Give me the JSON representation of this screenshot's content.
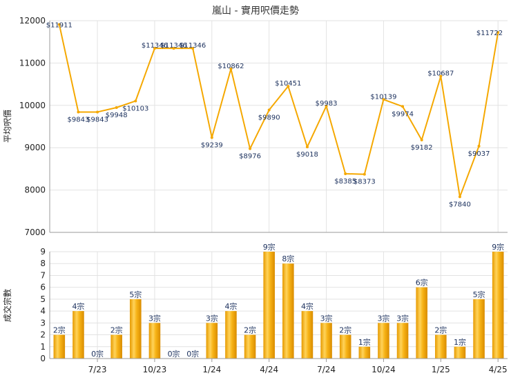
{
  "chart_data": [
    {
      "type": "line",
      "title": "嵐山 - 實用呎價走勢",
      "ylabel": "平均呎價",
      "ylim": [
        7000,
        12000
      ],
      "yticks": [
        7000,
        8000,
        9000,
        10000,
        11000,
        12000
      ],
      "line_color": "#f5a800",
      "series": [
        {
          "values": [
            11911,
            9843,
            9843,
            9948,
            10103,
            11346,
            11346,
            11346,
            9239,
            10862,
            8976,
            9890,
            10451,
            9018,
            9983,
            8385,
            8373,
            10139,
            9974,
            9182,
            10687,
            7840,
            9037,
            11722
          ],
          "labels": [
            "$11911",
            "$9843",
            "$9843",
            "$9948",
            "$10103",
            "$11346",
            "$11346",
            "$11346",
            "$9239",
            "$10862",
            "$8976",
            "$9890",
            "$10451",
            "$9018",
            "$9983",
            "$8385",
            "$8373",
            "$10139",
            "$9974",
            "$9182",
            "$10687",
            "$7840",
            "$9037",
            "$11722"
          ]
        }
      ]
    },
    {
      "type": "bar",
      "ylabel": "成交宗數",
      "ylim": [
        0,
        9
      ],
      "yticks": [
        0,
        1,
        2,
        3,
        4,
        5,
        6,
        7,
        8,
        9
      ],
      "bar_color": "#f5a800",
      "values": [
        2,
        4,
        0,
        2,
        5,
        3,
        0,
        0,
        3,
        4,
        2,
        9,
        8,
        4,
        3,
        2,
        1,
        3,
        3,
        6,
        2,
        1,
        5,
        9
      ],
      "labels": [
        "2宗",
        "4宗",
        "0宗",
        "2宗",
        "5宗",
        "3宗",
        "0宗",
        "0宗",
        "3宗",
        "4宗",
        "2宗",
        "9宗",
        "8宗",
        "4宗",
        "3宗",
        "2宗",
        "1宗",
        "3宗",
        "3宗",
        "6宗",
        "2宗",
        "1宗",
        "5宗",
        "9宗"
      ],
      "xtick_labels": [
        "7/23",
        "10/23",
        "1/24",
        "4/24",
        "7/24",
        "10/24",
        "1/25",
        "4/25"
      ],
      "xtick_index": [
        2,
        5,
        8,
        11,
        14,
        17,
        20,
        23
      ]
    }
  ]
}
